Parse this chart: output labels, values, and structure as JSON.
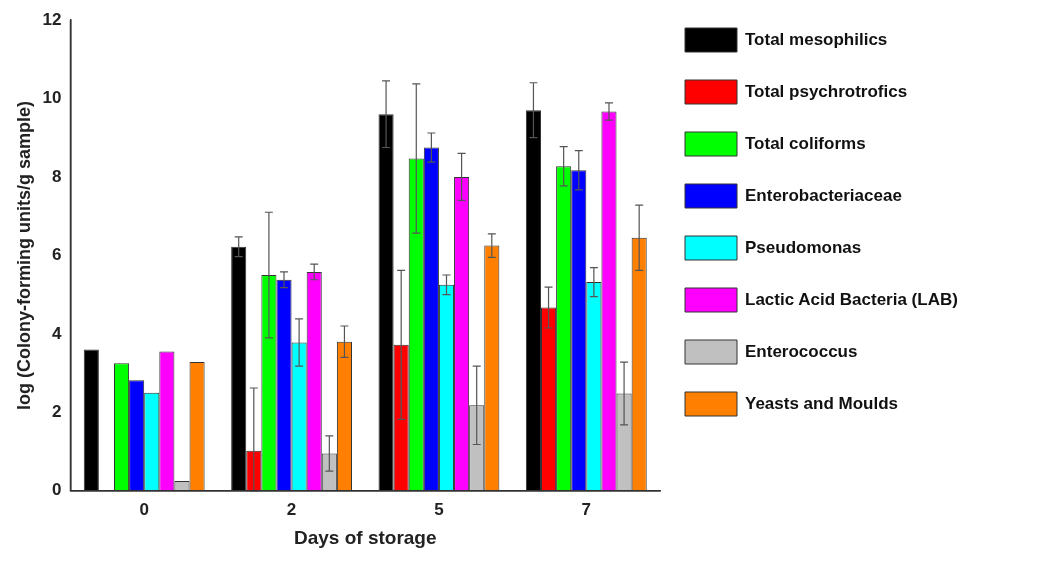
{
  "chart_data": {
    "type": "bar",
    "xlabel": "Days of storage",
    "ylabel": "log (Colony-forming units/g sample)",
    "categories": [
      "0",
      "2",
      "5",
      "7"
    ],
    "ylim": [
      0,
      12
    ],
    "yticks": [
      0,
      2,
      4,
      6,
      8,
      10,
      12
    ],
    "grid": false,
    "legend": "right",
    "series": [
      {
        "name": "Total mesophilics",
        "color": "#000000",
        "values": [
          3.6,
          6.22,
          9.6,
          9.7
        ],
        "errors": [
          null,
          0.25,
          0.85,
          0.7
        ]
      },
      {
        "name": "Total psychrotrofics",
        "color": "#ff0000",
        "values": [
          null,
          1.02,
          3.72,
          4.67
        ],
        "errors": [
          null,
          [
            0,
            2.62
          ],
          1.9,
          0.52
        ]
      },
      {
        "name": "Total coliforms",
        "color": "#00ff00",
        "values": [
          3.25,
          5.5,
          8.47,
          8.27
        ],
        "errors": [
          null,
          1.6,
          1.9,
          0.5
        ]
      },
      {
        "name": "Enterobacteriaceae",
        "color": "#0000ff",
        "values": [
          2.82,
          5.38,
          8.75,
          8.17
        ],
        "errors": [
          null,
          0.2,
          0.37,
          0.5
        ]
      },
      {
        "name": "Pseudomonas",
        "color": "#00ffff",
        "values": [
          2.5,
          3.78,
          5.25,
          5.32
        ],
        "errors": [
          null,
          0.6,
          0.25,
          0.37
        ]
      },
      {
        "name": "Lactic Acid Bacteria (LAB)",
        "color": "#ff00ff",
        "values": [
          3.55,
          5.58,
          8.0,
          9.67
        ],
        "errors": [
          null,
          0.2,
          0.6,
          0.22
        ]
      },
      {
        "name": "Enterococcus",
        "color": "#c0c0c0",
        "values": [
          0.25,
          0.95,
          2.18,
          2.48
        ],
        "errors": [
          null,
          0.45,
          1.0,
          0.8
        ]
      },
      {
        "name": "Yeasts and Moulds",
        "color": "#ff8000",
        "values": [
          3.28,
          3.8,
          6.25,
          6.45
        ],
        "errors": [
          null,
          0.4,
          0.3,
          0.83
        ]
      }
    ]
  }
}
